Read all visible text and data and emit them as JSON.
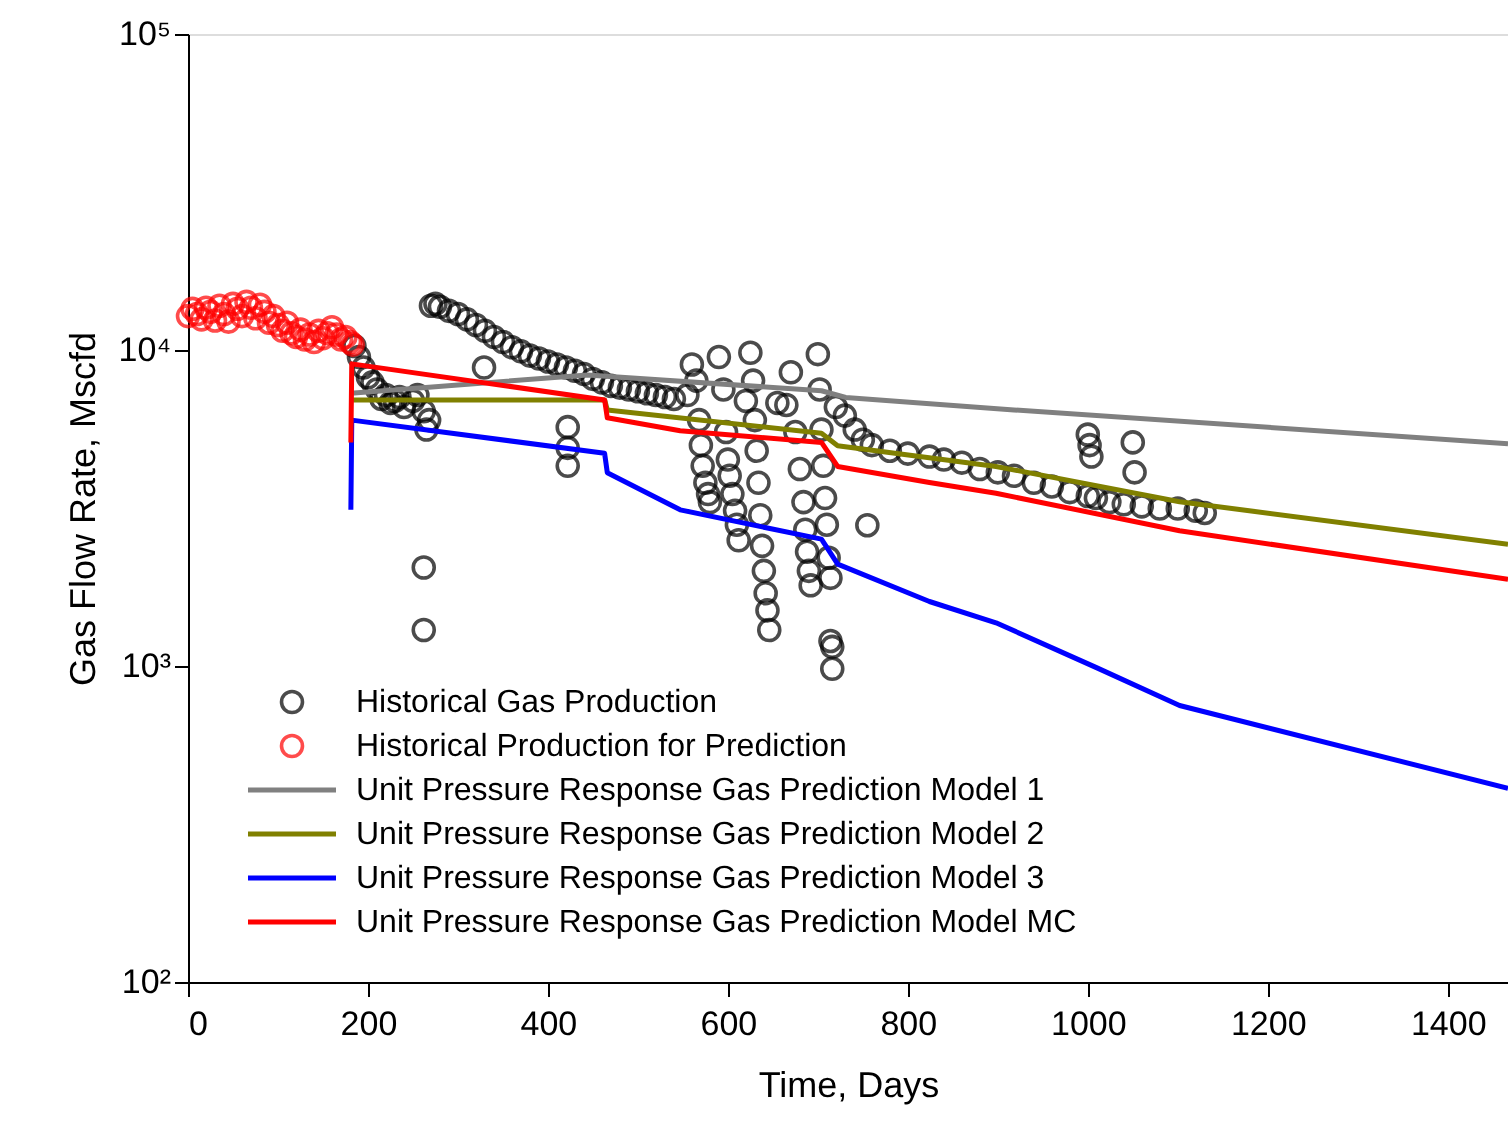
{
  "chart_data": {
    "type": "line",
    "xlabel": "Time, Days",
    "ylabel": "Gas Flow Rate, Mscfd",
    "log": "y",
    "grid": false,
    "legend": "bottom left",
    "xlim": [
      0,
      1467
    ],
    "xticks": [
      0,
      200,
      400,
      600,
      800,
      1000,
      1200,
      1400
    ],
    "ylim": [
      100,
      100000
    ],
    "yticks": [
      {
        "value": 100,
        "label": "10²"
      },
      {
        "value": 1000,
        "label": "10³"
      },
      {
        "value": 10000,
        "label": "10⁴"
      },
      {
        "value": 100000,
        "label": "10⁵"
      }
    ],
    "series": [
      {
        "name": "Historical Gas Production",
        "type": "scatter",
        "marker": "circle",
        "color": "#000000",
        "x": [
          185,
          190,
          195,
          200,
          205,
          210,
          215,
          220,
          225,
          230,
          235,
          240,
          250,
          255,
          262,
          265,
          268,
          262,
          262,
          270,
          275,
          280,
          290,
          300,
          310,
          320,
          330,
          329,
          340,
          350,
          360,
          370,
          380,
          390,
          400,
          410,
          420,
          422,
          422,
          422,
          430,
          440,
          450,
          460,
          470,
          480,
          490,
          500,
          510,
          520,
          530,
          540,
          555,
          560,
          565,
          568,
          570,
          572,
          575,
          578,
          580,
          590,
          595,
          598,
          600,
          602,
          605,
          608,
          610,
          612,
          620,
          625,
          628,
          630,
          632,
          634,
          636,
          638,
          640,
          642,
          644,
          646,
          655,
          665,
          670,
          675,
          680,
          684,
          686,
          688,
          690,
          692,
          700,
          702,
          704,
          706,
          708,
          710,
          712,
          714,
          714,
          716,
          716,
          720,
          730,
          741,
          750,
          755,
          760,
          780,
          800,
          824,
          840,
          860,
          880,
          900,
          918,
          940,
          960,
          980,
          1000,
          1000,
          1002,
          1004,
          1009,
          1024,
          1040,
          1050,
          1052,
          1060,
          1080,
          1100,
          1120,
          1130
        ],
        "values": [
          10300,
          9500,
          8800,
          8200,
          7900,
          7500,
          7000,
          7200,
          6800,
          6900,
          7100,
          6600,
          6900,
          7200,
          6400,
          5600,
          6000,
          2050,
          1300,
          13800,
          14000,
          13700,
          13300,
          13000,
          12500,
          12000,
          11500,
          8800,
          11000,
          10600,
          10200,
          9900,
          9600,
          9400,
          9200,
          9000,
          8800,
          5700,
          4900,
          4300,
          8600,
          8400,
          8100,
          7900,
          7700,
          7600,
          7500,
          7400,
          7300,
          7200,
          7100,
          7000,
          7200,
          9000,
          8000,
          6000,
          5000,
          4300,
          3800,
          3500,
          3300,
          9500,
          7500,
          5500,
          4500,
          4000,
          3500,
          3100,
          2800,
          2500,
          6900,
          9800,
          8000,
          6000,
          4800,
          3800,
          3000,
          2400,
          2000,
          1700,
          1500,
          1300,
          6800,
          6700,
          8500,
          5500,
          4200,
          3300,
          2700,
          2300,
          2000,
          1800,
          9700,
          7500,
          5600,
          4300,
          3400,
          2800,
          2200,
          1900,
          1200,
          1150,
          980,
          6600,
          6200,
          5600,
          5200,
          2790,
          5000,
          4800,
          4700,
          4600,
          4500,
          4400,
          4200,
          4100,
          4000,
          3800,
          3700,
          3550,
          3450,
          5400,
          5000,
          4600,
          3400,
          3300,
          3250,
          5100,
          4100,
          3200,
          3150,
          3150,
          3100,
          3050
        ]
      },
      {
        "name": "Historical Production for Prediction",
        "type": "scatter",
        "marker": "circle",
        "color": "#ff0000",
        "x": [
          0,
          5,
          10,
          15,
          20,
          25,
          30,
          35,
          40,
          45,
          50,
          55,
          60,
          65,
          70,
          75,
          80,
          85,
          90,
          95,
          100,
          105,
          110,
          115,
          120,
          125,
          130,
          135,
          140,
          145,
          150,
          155,
          160,
          165,
          170,
          175,
          180,
          183
        ],
        "values": [
          12800,
          13500,
          13000,
          12500,
          13600,
          13200,
          12400,
          13800,
          13000,
          12300,
          14000,
          13500,
          12800,
          14200,
          13600,
          12600,
          13900,
          13200,
          12200,
          12800,
          12000,
          11500,
          12200,
          11300,
          11000,
          11600,
          10800,
          11200,
          10600,
          11500,
          10900,
          11300,
          11800,
          11200,
          10800,
          11000,
          10600,
          10400
        ]
      },
      {
        "name": "Unit Pressure Response Gas Prediction Model 1",
        "color": "#808080",
        "x": [
          181,
          444,
          704,
          731,
          918,
          1467
        ],
        "values": [
          7300,
          8340,
          7430,
          7080,
          6460,
          5050
        ]
      },
      {
        "name": "Unit Pressure Response Gas Prediction Model 2",
        "color": "#808000",
        "x": [
          181,
          463,
          466,
          704,
          722,
          898,
          1102,
          1467
        ],
        "values": [
          6950,
          6950,
          6460,
          5450,
          4980,
          4280,
          3310,
          2430
        ]
      },
      {
        "name": "Unit Pressure Response Gas Prediction Model 3",
        "color": "#0000ff",
        "x": [
          181,
          182,
          463,
          466,
          547,
          704,
          722,
          824,
          898,
          1009,
          1102,
          1467
        ],
        "values": [
          3120,
          6000,
          4710,
          4090,
          3120,
          2520,
          2100,
          1600,
          1370,
          990,
          750,
          410
        ]
      },
      {
        "name": "Unit Pressure Response Gas Prediction Model  MC",
        "color": "#ff0000",
        "x": [
          181,
          182,
          463,
          466,
          547,
          704,
          722,
          824,
          898,
          1102,
          1467
        ],
        "values": [
          5100,
          9040,
          6950,
          6100,
          5550,
          5100,
          4280,
          3810,
          3520,
          2680,
          1880
        ]
      }
    ]
  }
}
